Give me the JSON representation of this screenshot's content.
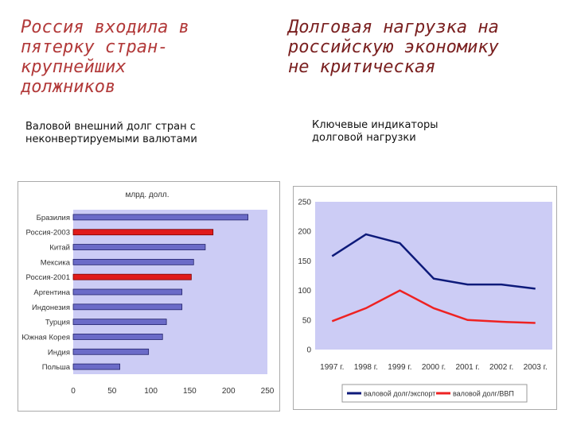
{
  "left": {
    "title": "Россия входила в\nпятерку стран-\nкрупнейших\nдолжников",
    "subtitle": "Валовой внешний долг стран с\nнеконвертируемыми валютами"
  },
  "right": {
    "title": "Долговая нагрузка на\nроссийскую экономику\nне критическая",
    "subtitle": "Ключевые индикаторы\nдолговой нагрузки"
  },
  "colors": {
    "plot_bg": "#ccccf5",
    "bar": "#6b6bc8",
    "highlight": "#e01b1b",
    "line1": "#0d1a7a",
    "line2": "#ee2222"
  },
  "chart_data": [
    {
      "type": "bar",
      "orientation": "horizontal",
      "title": "млрд. долл.",
      "categories": [
        "Бразилия",
        "Россия-2003",
        "Китай",
        "Мексика",
        "Россия-2001",
        "Аргентина",
        "Индонезия",
        "Турция",
        "Южная Корея",
        "Индия",
        "Польша"
      ],
      "values": [
        225,
        180,
        170,
        155,
        152,
        140,
        140,
        120,
        115,
        97,
        60
      ],
      "highlighted": [
        "Россия-2003",
        "Россия-2001"
      ],
      "xlim": [
        0,
        250
      ],
      "xticks": [
        "0",
        "50",
        "100",
        "150",
        "200",
        "250"
      ],
      "grid": false
    },
    {
      "type": "line",
      "categories": [
        "1997 г.",
        "1998 г.",
        "1999 г.",
        "2000 г.",
        "2001 г.",
        "2002 г.",
        "2003 г."
      ],
      "series": [
        {
          "name": "валовой долг/экспорт",
          "values": [
            158,
            195,
            180,
            120,
            110,
            110,
            103
          ]
        },
        {
          "name": "валовой долг/ВВП",
          "values": [
            48,
            70,
            100,
            70,
            50,
            47,
            45
          ]
        }
      ],
      "ylim": [
        0,
        250
      ],
      "yticks": [
        "250",
        "200",
        "150",
        "100",
        "50",
        "0"
      ],
      "legend": "bottom"
    }
  ]
}
